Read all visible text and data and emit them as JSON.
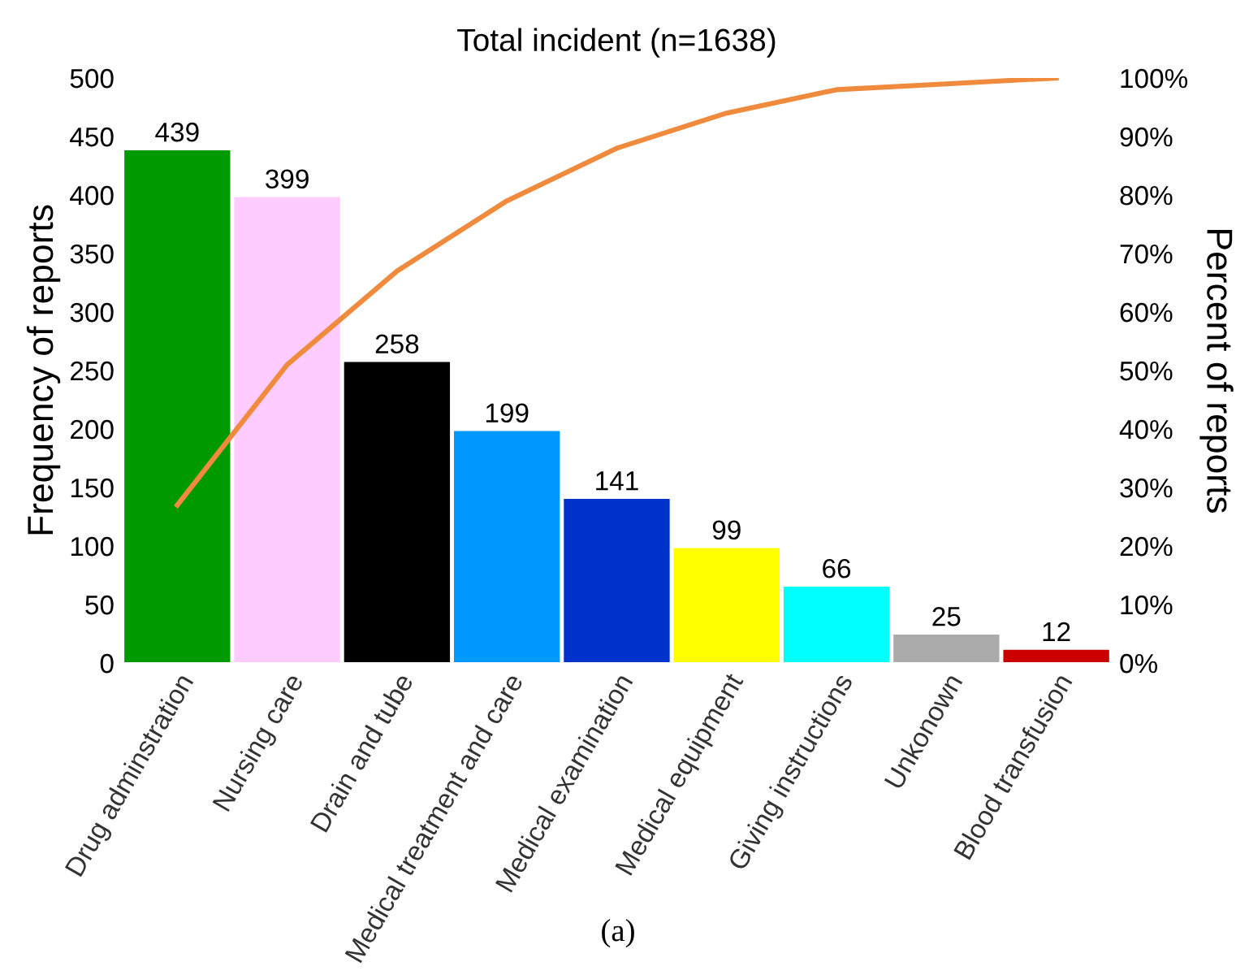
{
  "chart_data": {
    "type": "bar",
    "title": "Total incident (n=1638)",
    "ylabel": "Frequency of reports",
    "y2label": "Percent of reports",
    "categories": [
      "Drug adminstration",
      "Nursing care",
      "Drain and tube",
      "Medical treatment and care",
      "Medical examination",
      "Medical equipment",
      "Giving instructions",
      "Unkonown",
      "Blood transfusion"
    ],
    "series": [
      {
        "colors": [
          "#009900",
          "#ffccff",
          "#000000",
          "#0099ff",
          "#0033cc",
          "#ffff00",
          "#00ffff",
          "#aaaaaa",
          "#cc0000"
        ],
        "values": [
          439,
          399,
          258,
          199,
          141,
          99,
          66,
          25,
          12
        ],
        "value_labels": [
          "439",
          "399",
          "258",
          "199",
          "141",
          "99",
          "66",
          "25",
          "12"
        ]
      },
      {
        "type": "line",
        "axis": "y2",
        "color": "#f08a3c",
        "values": [
          27,
          51,
          67,
          79,
          88,
          94,
          98,
          99,
          100
        ]
      }
    ],
    "ylim": [
      0,
      500
    ],
    "yticks": [
      0,
      50,
      100,
      150,
      200,
      250,
      300,
      350,
      400,
      450,
      500
    ],
    "y2lim": [
      0,
      100
    ],
    "y2ticks": [
      {
        "value": 0,
        "label": "0%"
      },
      {
        "value": 10,
        "label": "10%"
      },
      {
        "value": 20,
        "label": "20%"
      },
      {
        "value": 30,
        "label": "30%"
      },
      {
        "value": 40,
        "label": "40%"
      },
      {
        "value": 50,
        "label": "50%"
      },
      {
        "value": 60,
        "label": "60%"
      },
      {
        "value": 70,
        "label": "70%"
      },
      {
        "value": 80,
        "label": "80%"
      },
      {
        "value": 90,
        "label": "90%"
      },
      {
        "value": 100,
        "label": "100%"
      }
    ],
    "grid": false,
    "legend": false,
    "annotations": [
      "(a)"
    ]
  }
}
